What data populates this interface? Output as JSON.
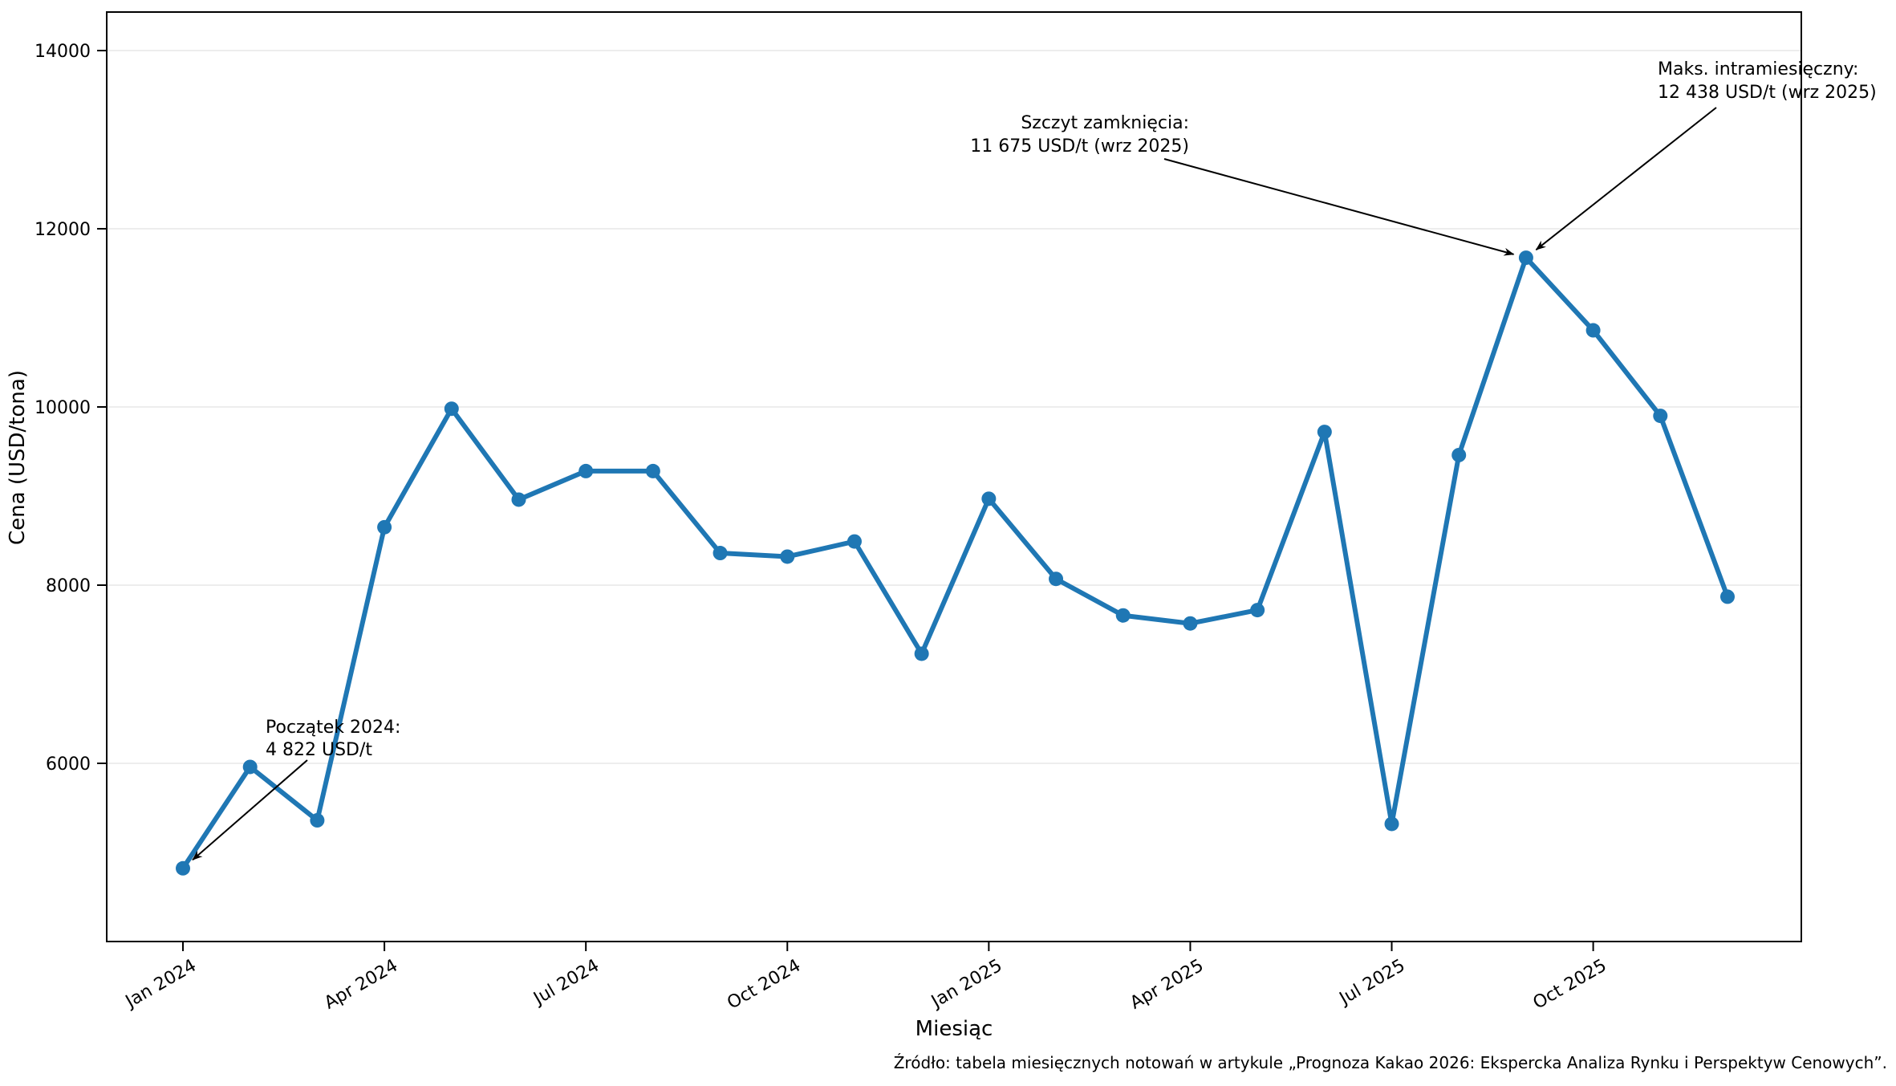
{
  "chart_data": {
    "type": "line",
    "title": "",
    "xlabel": "Miesiąc",
    "ylabel": "Cena (USD/tona)",
    "x": [
      "Jan 2024",
      "Feb 2024",
      "Mar 2024",
      "Apr 2024",
      "May 2024",
      "Jun 2024",
      "Jul 2024",
      "Aug 2024",
      "Sep 2024",
      "Oct 2024",
      "Nov 2024",
      "Dec 2024",
      "Jan 2025",
      "Feb 2025",
      "Mar 2025",
      "Apr 2025",
      "May 2025",
      "Jun 2025",
      "Jul 2025",
      "Aug 2025",
      "Sep 2025",
      "Oct 2025",
      "Nov 2025",
      "Dec 2025"
    ],
    "values": [
      4822,
      5960,
      5360,
      8650,
      9980,
      8960,
      9280,
      9280,
      8360,
      8320,
      8490,
      7230,
      8970,
      8070,
      7660,
      7570,
      7720,
      9720,
      5320,
      9460,
      11675,
      10860,
      9900,
      7870
    ],
    "ylim": [
      4000,
      14430
    ],
    "yticks": [
      6000,
      8000,
      10000,
      12000,
      14000
    ],
    "grid": "horizontal",
    "legend": "none",
    "line_color": "#1f77b4",
    "annotations": [
      {
        "line1": "Początek 2024:",
        "line2": "4 822 USD/t",
        "target_month": "Jan 2024",
        "target_value": 4822
      },
      {
        "line1": "Szczyt zamknięcia:",
        "line2": "11 675 USD/t (wrz 2025)",
        "target_month": "Sep 2025",
        "target_value": 11675
      },
      {
        "line1": "Maks. intramiesięczny:",
        "line2": "12 438 USD/t (wrz 2025)",
        "target_month": "Sep 2025",
        "target_value": 12438
      }
    ]
  },
  "figure": {
    "x_axis": {
      "label": "Miesiąc",
      "tick_labels": [
        "Jan 2024",
        "Apr 2024",
        "Jul 2024",
        "Oct 2024",
        "Jan 2025",
        "Apr 2025",
        "Jul 2025",
        "Oct 2025"
      ],
      "tick_month_indices": [
        0,
        3,
        6,
        9,
        12,
        15,
        18,
        21
      ]
    },
    "y_axis": {
      "label": "Cena (USD/tona)",
      "tick_labels": [
        "6000",
        "8000",
        "10000",
        "12000",
        "14000"
      ]
    },
    "source_note": "Źródło: tabela miesięcznych notowań w artykule „Prognoza Kakao 2026: Ekspercka Analiza Rynku i Perspektyw Cenowych”."
  }
}
